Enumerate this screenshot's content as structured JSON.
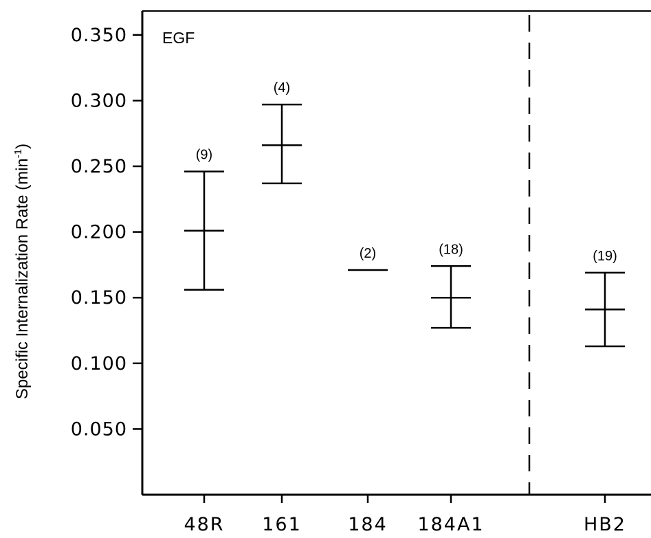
{
  "chart_data": {
    "type": "errorbar",
    "title": "",
    "panel_label": "EGF",
    "ylabel": "Specific Internalization Rate (min",
    "ylabel_sup": "-1",
    "ylabel_close": ")",
    "xlabel": "",
    "ylim": [
      0.0,
      0.37
    ],
    "yticks": [
      "0.350",
      "0.300",
      "0.250",
      "0.200",
      "0.150",
      "0.100",
      "0.050"
    ],
    "ytick_values": [
      0.35,
      0.3,
      0.25,
      0.2,
      0.15,
      0.1,
      0.05
    ],
    "categories": [
      "48R",
      "161",
      "184",
      "184A1",
      "HB2"
    ],
    "points": [
      {
        "category": "48R",
        "mean": 0.201,
        "upper": 0.246,
        "lower": 0.156,
        "n_label": "(9)"
      },
      {
        "category": "161",
        "mean": 0.266,
        "upper": 0.297,
        "lower": 0.237,
        "n_label": "(4)"
      },
      {
        "category": "184",
        "mean": 0.171,
        "upper": 0.171,
        "lower": 0.171,
        "n_label": "(2)"
      },
      {
        "category": "184A1",
        "mean": 0.15,
        "upper": 0.174,
        "lower": 0.127,
        "n_label": "(18)"
      },
      {
        "category": "HB2",
        "mean": 0.141,
        "upper": 0.169,
        "lower": 0.113,
        "n_label": "(19)"
      }
    ],
    "divider_after": "184A1",
    "grid": false,
    "legend": "none"
  }
}
